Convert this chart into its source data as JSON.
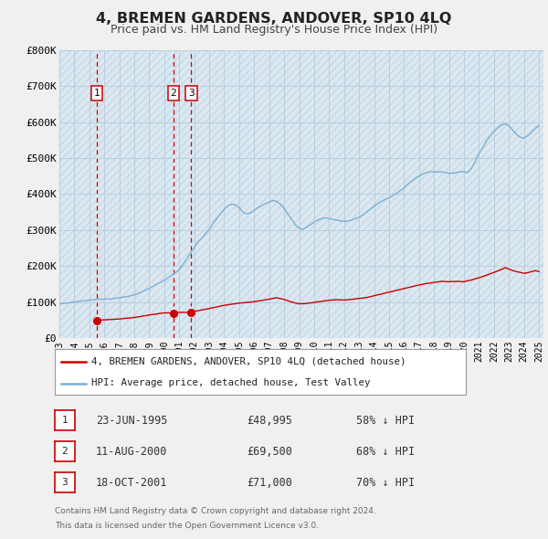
{
  "title": "4, BREMEN GARDENS, ANDOVER, SP10 4LQ",
  "subtitle": "Price paid vs. HM Land Registry's House Price Index (HPI)",
  "legend_line1": "4, BREMEN GARDENS, ANDOVER, SP10 4LQ (detached house)",
  "legend_line2": "HPI: Average price, detached house, Test Valley",
  "legend_line_color": "#cc0000",
  "legend_hpi_color": "#7ab0d4",
  "transactions": [
    {
      "label": "1",
      "date_dec": 1995.48,
      "price": 48995,
      "hpi_pct": "58% ↓ HPI",
      "date_str": "23-JUN-1995"
    },
    {
      "label": "2",
      "date_dec": 2000.61,
      "price": 69500,
      "hpi_pct": "68% ↓ HPI",
      "date_str": "11-AUG-2000"
    },
    {
      "label": "3",
      "date_dec": 2001.8,
      "price": 71000,
      "hpi_pct": "70% ↓ HPI",
      "date_str": "18-OCT-2001"
    }
  ],
  "vline_color": "#cc0000",
  "marker_color": "#cc0000",
  "bg_color": "#f0f0f0",
  "plot_bg_color": "#dce8f0",
  "hatch_bg_color": "#e8e8e8",
  "grid_color": "#b8cfe0",
  "xlim": [
    1993.0,
    2025.3
  ],
  "ylim": [
    0,
    800000
  ],
  "yticks": [
    0,
    100000,
    200000,
    300000,
    400000,
    500000,
    600000,
    700000,
    800000
  ],
  "ytick_labels": [
    "£0",
    "£100K",
    "£200K",
    "£300K",
    "£400K",
    "£500K",
    "£600K",
    "£700K",
    "£800K"
  ],
  "xticks": [
    1993,
    1994,
    1995,
    1996,
    1997,
    1998,
    1999,
    2000,
    2001,
    2002,
    2003,
    2004,
    2005,
    2006,
    2007,
    2008,
    2009,
    2010,
    2011,
    2012,
    2013,
    2014,
    2015,
    2016,
    2017,
    2018,
    2019,
    2020,
    2021,
    2022,
    2023,
    2024,
    2025
  ],
  "hpi_data": [
    [
      1993.0,
      95000
    ],
    [
      1993.5,
      97000
    ],
    [
      1994.0,
      100000
    ],
    [
      1994.5,
      103000
    ],
    [
      1995.0,
      105000
    ],
    [
      1995.5,
      108000
    ],
    [
      1996.0,
      108000
    ],
    [
      1996.5,
      109000
    ],
    [
      1997.0,
      112000
    ],
    [
      1997.5,
      115000
    ],
    [
      1998.0,
      120000
    ],
    [
      1998.5,
      128000
    ],
    [
      1999.0,
      138000
    ],
    [
      1999.5,
      150000
    ],
    [
      2000.0,
      160000
    ],
    [
      2000.5,
      175000
    ],
    [
      2001.0,
      190000
    ],
    [
      2001.25,
      205000
    ],
    [
      2001.5,
      220000
    ],
    [
      2001.75,
      235000
    ],
    [
      2002.0,
      252000
    ],
    [
      2002.25,
      268000
    ],
    [
      2002.5,
      278000
    ],
    [
      2002.75,
      290000
    ],
    [
      2003.0,
      302000
    ],
    [
      2003.25,
      318000
    ],
    [
      2003.5,
      332000
    ],
    [
      2003.75,
      345000
    ],
    [
      2004.0,
      358000
    ],
    [
      2004.25,
      368000
    ],
    [
      2004.5,
      372000
    ],
    [
      2004.75,
      370000
    ],
    [
      2005.0,
      362000
    ],
    [
      2005.25,
      350000
    ],
    [
      2005.5,
      345000
    ],
    [
      2005.75,
      348000
    ],
    [
      2006.0,
      355000
    ],
    [
      2006.25,
      362000
    ],
    [
      2006.5,
      368000
    ],
    [
      2006.75,
      374000
    ],
    [
      2007.0,
      378000
    ],
    [
      2007.25,
      382000
    ],
    [
      2007.5,
      380000
    ],
    [
      2007.75,
      372000
    ],
    [
      2008.0,
      360000
    ],
    [
      2008.25,
      345000
    ],
    [
      2008.5,
      330000
    ],
    [
      2008.75,
      315000
    ],
    [
      2009.0,
      305000
    ],
    [
      2009.25,
      302000
    ],
    [
      2009.5,
      308000
    ],
    [
      2009.75,
      315000
    ],
    [
      2010.0,
      322000
    ],
    [
      2010.25,
      328000
    ],
    [
      2010.5,
      332000
    ],
    [
      2010.75,
      334000
    ],
    [
      2011.0,
      332000
    ],
    [
      2011.25,
      330000
    ],
    [
      2011.5,
      328000
    ],
    [
      2011.75,
      326000
    ],
    [
      2012.0,
      324000
    ],
    [
      2012.25,
      325000
    ],
    [
      2012.5,
      328000
    ],
    [
      2012.75,
      332000
    ],
    [
      2013.0,
      336000
    ],
    [
      2013.25,
      342000
    ],
    [
      2013.5,
      350000
    ],
    [
      2013.75,
      358000
    ],
    [
      2014.0,
      366000
    ],
    [
      2014.25,
      374000
    ],
    [
      2014.5,
      380000
    ],
    [
      2014.75,
      386000
    ],
    [
      2015.0,
      390000
    ],
    [
      2015.25,
      396000
    ],
    [
      2015.5,
      402000
    ],
    [
      2015.75,
      410000
    ],
    [
      2016.0,
      418000
    ],
    [
      2016.25,
      428000
    ],
    [
      2016.5,
      436000
    ],
    [
      2016.75,
      444000
    ],
    [
      2017.0,
      450000
    ],
    [
      2017.25,
      456000
    ],
    [
      2017.5,
      460000
    ],
    [
      2017.75,
      462000
    ],
    [
      2018.0,
      462000
    ],
    [
      2018.25,
      462000
    ],
    [
      2018.5,
      462000
    ],
    [
      2018.75,
      460000
    ],
    [
      2019.0,
      458000
    ],
    [
      2019.25,
      458000
    ],
    [
      2019.5,
      460000
    ],
    [
      2019.75,
      462000
    ],
    [
      2020.0,
      462000
    ],
    [
      2020.25,
      460000
    ],
    [
      2020.5,
      472000
    ],
    [
      2020.75,
      492000
    ],
    [
      2021.0,
      512000
    ],
    [
      2021.25,
      530000
    ],
    [
      2021.5,
      548000
    ],
    [
      2021.75,
      562000
    ],
    [
      2022.0,
      574000
    ],
    [
      2022.25,
      584000
    ],
    [
      2022.5,
      592000
    ],
    [
      2022.75,
      596000
    ],
    [
      2023.0,
      590000
    ],
    [
      2023.25,
      578000
    ],
    [
      2023.5,
      566000
    ],
    [
      2023.75,
      558000
    ],
    [
      2024.0,
      556000
    ],
    [
      2024.25,
      562000
    ],
    [
      2024.5,
      572000
    ],
    [
      2024.75,
      582000
    ],
    [
      2025.0,
      590000
    ]
  ],
  "prop_data": [
    [
      1995.48,
      48995
    ],
    [
      1996.0,
      50500
    ],
    [
      1997.0,
      53000
    ],
    [
      1998.0,
      57000
    ],
    [
      1999.0,
      64000
    ],
    [
      2000.0,
      70000
    ],
    [
      2000.61,
      69500
    ],
    [
      2001.0,
      71500
    ],
    [
      2001.8,
      71000
    ],
    [
      2002.0,
      74000
    ],
    [
      2003.0,
      82000
    ],
    [
      2004.0,
      91000
    ],
    [
      2005.0,
      97000
    ],
    [
      2006.0,
      101000
    ],
    [
      2007.0,
      108000
    ],
    [
      2007.5,
      112000
    ],
    [
      2008.0,
      107000
    ],
    [
      2008.5,
      100000
    ],
    [
      2009.0,
      95000
    ],
    [
      2009.5,
      96000
    ],
    [
      2010.0,
      99000
    ],
    [
      2010.5,
      102000
    ],
    [
      2011.0,
      105000
    ],
    [
      2011.5,
      106500
    ],
    [
      2012.0,
      105500
    ],
    [
      2012.5,
      107500
    ],
    [
      2013.0,
      110000
    ],
    [
      2013.5,
      112500
    ],
    [
      2014.0,
      117500
    ],
    [
      2014.5,
      122500
    ],
    [
      2015.0,
      127500
    ],
    [
      2015.5,
      132500
    ],
    [
      2016.0,
      137500
    ],
    [
      2016.5,
      142500
    ],
    [
      2017.0,
      147500
    ],
    [
      2017.5,
      151500
    ],
    [
      2018.0,
      154500
    ],
    [
      2018.5,
      157500
    ],
    [
      2019.0,
      156500
    ],
    [
      2019.5,
      157500
    ],
    [
      2020.0,
      156500
    ],
    [
      2020.5,
      161500
    ],
    [
      2021.0,
      167500
    ],
    [
      2021.5,
      174500
    ],
    [
      2022.0,
      182500
    ],
    [
      2022.5,
      190500
    ],
    [
      2022.75,
      195500
    ],
    [
      2023.0,
      191500
    ],
    [
      2023.25,
      187500
    ],
    [
      2023.5,
      184500
    ],
    [
      2023.75,
      182500
    ],
    [
      2024.0,
      180000
    ],
    [
      2024.25,
      181500
    ],
    [
      2024.5,
      184500
    ],
    [
      2024.75,
      187500
    ],
    [
      2025.0,
      184500
    ]
  ],
  "footer_line1": "Contains HM Land Registry data © Crown copyright and database right 2024.",
  "footer_line2": "This data is licensed under the Open Government Licence v3.0."
}
